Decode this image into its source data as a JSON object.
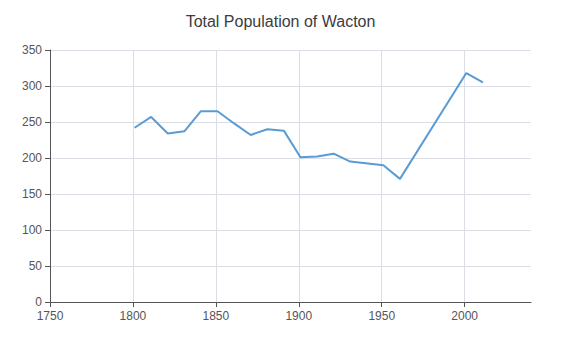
{
  "chart_data": {
    "type": "line",
    "title": "Total Population of Wacton",
    "x": [
      1801,
      1811,
      1821,
      1831,
      1841,
      1851,
      1861,
      1871,
      1881,
      1891,
      1901,
      1911,
      1921,
      1931,
      1951,
      1961,
      2001,
      2011
    ],
    "values": [
      242,
      257,
      234,
      237,
      265,
      265,
      248,
      232,
      240,
      238,
      201,
      202,
      206,
      195,
      190,
      171,
      318,
      305
    ],
    "color": "#5b9bd5",
    "xlim": [
      1750,
      2040
    ],
    "xticks": [
      1750,
      1800,
      1850,
      1900,
      1950,
      2000
    ],
    "ylim": [
      0,
      350
    ],
    "yticks": [
      0,
      50,
      100,
      150,
      200,
      250,
      300,
      350
    ],
    "grid": true
  }
}
